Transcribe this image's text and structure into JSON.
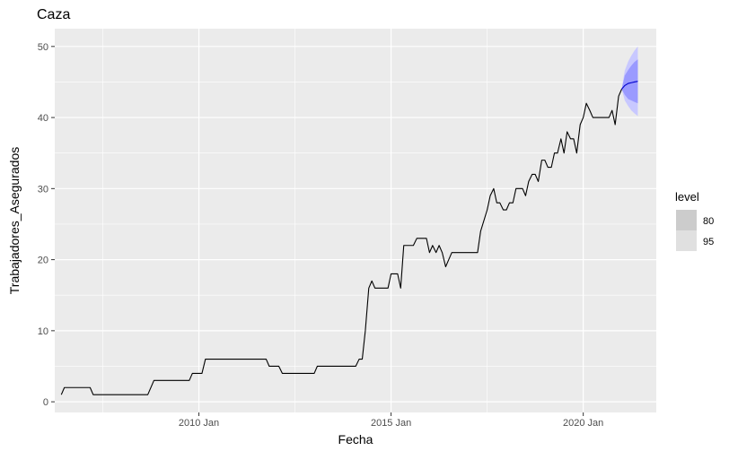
{
  "chart_data": {
    "type": "line",
    "title": "Caza",
    "xlabel": "Fecha",
    "ylabel": "Trabajadores_Asegurados",
    "x_ticks": [
      "2010 Jan",
      "2015 Jan",
      "2020 Jan"
    ],
    "x_tick_values": [
      2010.0,
      2015.0,
      2020.0
    ],
    "y_ticks": [
      "0",
      "10",
      "20",
      "30",
      "40",
      "50"
    ],
    "y_tick_values": [
      0,
      10,
      20,
      30,
      40,
      50
    ],
    "xlim": [
      2006.25,
      2021.9
    ],
    "ylim": [
      -1.5,
      52.5
    ],
    "grid": true,
    "legend": {
      "title": "level",
      "placement": "right",
      "entries": [
        {
          "label": "80",
          "color": "#cccccc"
        },
        {
          "label": "95",
          "color": "#e0e0e0"
        }
      ]
    },
    "colors": {
      "panel": "#ebebeb",
      "grid": "#ffffff",
      "series": "#000000",
      "forecast_line": "#0000cc",
      "interval_80": "#9a9aff",
      "interval_95": "#c8c8ff"
    },
    "series": [
      {
        "points": [
          [
            2006.42,
            1
          ],
          [
            2006.5,
            2
          ],
          [
            2007.17,
            2
          ],
          [
            2007.25,
            1
          ],
          [
            2008.67,
            1
          ],
          [
            2008.83,
            3
          ],
          [
            2009.75,
            3
          ],
          [
            2009.83,
            4
          ],
          [
            2010.08,
            4
          ],
          [
            2010.17,
            6
          ],
          [
            2011.75,
            6
          ],
          [
            2011.83,
            5
          ],
          [
            2012.08,
            5
          ],
          [
            2012.17,
            4
          ],
          [
            2013.0,
            4
          ],
          [
            2013.08,
            5
          ],
          [
            2014.08,
            5
          ],
          [
            2014.17,
            6
          ],
          [
            2014.25,
            6
          ],
          [
            2014.33,
            10
          ],
          [
            2014.42,
            16
          ],
          [
            2014.5,
            17
          ],
          [
            2014.58,
            16
          ],
          [
            2014.92,
            16
          ],
          [
            2015.0,
            18
          ],
          [
            2015.17,
            18
          ],
          [
            2015.25,
            16
          ],
          [
            2015.33,
            22
          ],
          [
            2015.58,
            22
          ],
          [
            2015.67,
            23
          ],
          [
            2015.92,
            23
          ],
          [
            2016.0,
            21
          ],
          [
            2016.08,
            22
          ],
          [
            2016.17,
            21
          ],
          [
            2016.25,
            22
          ],
          [
            2016.33,
            21
          ],
          [
            2016.42,
            19
          ],
          [
            2016.5,
            20
          ],
          [
            2016.58,
            21
          ],
          [
            2017.25,
            21
          ],
          [
            2017.33,
            24
          ],
          [
            2017.5,
            27
          ],
          [
            2017.58,
            29
          ],
          [
            2017.67,
            30
          ],
          [
            2017.75,
            28
          ],
          [
            2017.83,
            28
          ],
          [
            2017.92,
            27
          ],
          [
            2018.0,
            27
          ],
          [
            2018.08,
            28
          ],
          [
            2018.17,
            28
          ],
          [
            2018.25,
            30
          ],
          [
            2018.42,
            30
          ],
          [
            2018.5,
            29
          ],
          [
            2018.58,
            31
          ],
          [
            2018.67,
            32
          ],
          [
            2018.75,
            32
          ],
          [
            2018.83,
            31
          ],
          [
            2018.92,
            34
          ],
          [
            2019.0,
            34
          ],
          [
            2019.08,
            33
          ],
          [
            2019.17,
            33
          ],
          [
            2019.25,
            35
          ],
          [
            2019.33,
            35
          ],
          [
            2019.42,
            37
          ],
          [
            2019.5,
            35
          ],
          [
            2019.58,
            38
          ],
          [
            2019.67,
            37
          ],
          [
            2019.75,
            37
          ],
          [
            2019.83,
            35
          ],
          [
            2019.92,
            39
          ],
          [
            2020.0,
            40
          ],
          [
            2020.08,
            42
          ],
          [
            2020.17,
            41
          ],
          [
            2020.25,
            40
          ],
          [
            2020.67,
            40
          ],
          [
            2020.75,
            41
          ],
          [
            2020.83,
            39
          ],
          [
            2020.92,
            43
          ],
          [
            2021.0,
            44
          ]
        ]
      }
    ],
    "forecast": {
      "x": [
        2021.08,
        2021.17,
        2021.25,
        2021.33,
        2021.42
      ],
      "mean": [
        44.5,
        44.8,
        44.9,
        45.0,
        45.1
      ],
      "lo80": [
        43.2,
        42.6,
        42.4,
        42.2,
        42.0
      ],
      "hi80": [
        45.9,
        46.7,
        47.3,
        47.8,
        48.2
      ],
      "lo95": [
        42.4,
        41.6,
        41.0,
        40.6,
        40.2
      ],
      "hi95": [
        46.6,
        47.9,
        48.7,
        49.4,
        50.0
      ]
    }
  }
}
